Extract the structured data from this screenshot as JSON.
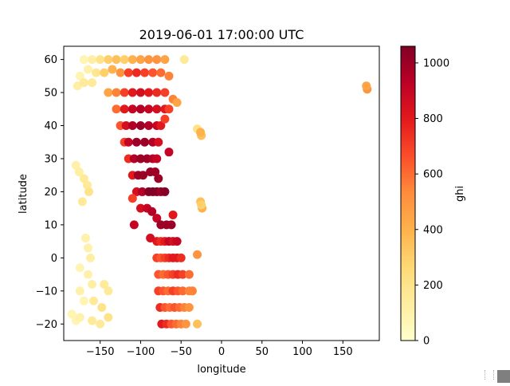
{
  "chart_data": {
    "type": "scatter",
    "title": "2019-06-01 17:00:00 UTC",
    "xlabel": "longitude",
    "ylabel": "latitude",
    "xlim": [
      -195,
      195
    ],
    "ylim": [
      -25,
      64
    ],
    "xticks": [
      -150,
      -100,
      -50,
      0,
      50,
      100,
      150
    ],
    "xtick_labels": [
      "−150",
      "−100",
      "−50",
      "0",
      "50",
      "100",
      "150"
    ],
    "yticks": [
      -20,
      -10,
      0,
      10,
      20,
      30,
      40,
      50,
      60
    ],
    "ytick_labels": [
      "−20",
      "−10",
      "0",
      "10",
      "20",
      "30",
      "40",
      "50",
      "60"
    ],
    "colorbar": {
      "label": "ghi",
      "range": [
        0,
        1060
      ],
      "ticks": [
        0,
        200,
        400,
        600,
        800,
        1000
      ],
      "tick_labels": [
        "0",
        "200",
        "400",
        "600",
        "800",
        "1000"
      ],
      "colormap": "YlOrRd"
    },
    "points": [
      {
        "x": -170,
        "y": 60,
        "v": 80
      },
      {
        "x": -160,
        "y": 60,
        "v": 120
      },
      {
        "x": -150,
        "y": 60,
        "v": 200
      },
      {
        "x": -140,
        "y": 60,
        "v": 300
      },
      {
        "x": -130,
        "y": 60,
        "v": 350
      },
      {
        "x": -120,
        "y": 60,
        "v": 300
      },
      {
        "x": -110,
        "y": 60,
        "v": 400
      },
      {
        "x": -100,
        "y": 60,
        "v": 450
      },
      {
        "x": -90,
        "y": 60,
        "v": 500
      },
      {
        "x": -80,
        "y": 60,
        "v": 500
      },
      {
        "x": -70,
        "y": 60,
        "v": 450
      },
      {
        "x": -46,
        "y": 60,
        "v": 150
      },
      {
        "x": -175,
        "y": 55,
        "v": 80
      },
      {
        "x": -165,
        "y": 57,
        "v": 100
      },
      {
        "x": -155,
        "y": 56,
        "v": 180
      },
      {
        "x": -145,
        "y": 56,
        "v": 300
      },
      {
        "x": -135,
        "y": 57,
        "v": 400
      },
      {
        "x": -125,
        "y": 56,
        "v": 500
      },
      {
        "x": -115,
        "y": 56,
        "v": 700
      },
      {
        "x": -105,
        "y": 56,
        "v": 750
      },
      {
        "x": -95,
        "y": 56,
        "v": 700
      },
      {
        "x": -85,
        "y": 56,
        "v": 650
      },
      {
        "x": -75,
        "y": 56,
        "v": 600
      },
      {
        "x": -65,
        "y": 55,
        "v": 550
      },
      {
        "x": -178,
        "y": 52,
        "v": 120
      },
      {
        "x": -170,
        "y": 53,
        "v": 150
      },
      {
        "x": -160,
        "y": 53,
        "v": 150
      },
      {
        "x": -140,
        "y": 50,
        "v": 450
      },
      {
        "x": -130,
        "y": 50,
        "v": 550
      },
      {
        "x": -120,
        "y": 50,
        "v": 700
      },
      {
        "x": -110,
        "y": 50,
        "v": 800
      },
      {
        "x": -100,
        "y": 50,
        "v": 850
      },
      {
        "x": -90,
        "y": 50,
        "v": 800
      },
      {
        "x": -80,
        "y": 50,
        "v": 750
      },
      {
        "x": -70,
        "y": 50,
        "v": 700
      },
      {
        "x": -60,
        "y": 48,
        "v": 550
      },
      {
        "x": -55,
        "y": 47,
        "v": 450
      },
      {
        "x": -130,
        "y": 45,
        "v": 600
      },
      {
        "x": -120,
        "y": 45,
        "v": 800
      },
      {
        "x": -110,
        "y": 45,
        "v": 900
      },
      {
        "x": -100,
        "y": 45,
        "v": 950
      },
      {
        "x": -90,
        "y": 45,
        "v": 900
      },
      {
        "x": -80,
        "y": 45,
        "v": 850
      },
      {
        "x": -70,
        "y": 45,
        "v": 800
      },
      {
        "x": -65,
        "y": 45,
        "v": 700
      },
      {
        "x": -125,
        "y": 40,
        "v": 650
      },
      {
        "x": -118,
        "y": 40,
        "v": 850
      },
      {
        "x": -110,
        "y": 40,
        "v": 950
      },
      {
        "x": -100,
        "y": 40,
        "v": 1000
      },
      {
        "x": -90,
        "y": 40,
        "v": 950
      },
      {
        "x": -80,
        "y": 40,
        "v": 900
      },
      {
        "x": -75,
        "y": 40,
        "v": 800
      },
      {
        "x": -70,
        "y": 42,
        "v": 700
      },
      {
        "x": -120,
        "y": 35,
        "v": 700
      },
      {
        "x": -115,
        "y": 35,
        "v": 900
      },
      {
        "x": -105,
        "y": 35,
        "v": 1000
      },
      {
        "x": -95,
        "y": 35,
        "v": 1000
      },
      {
        "x": -85,
        "y": 35,
        "v": 950
      },
      {
        "x": -78,
        "y": 35,
        "v": 850
      },
      {
        "x": -115,
        "y": 30,
        "v": 750
      },
      {
        "x": -108,
        "y": 30,
        "v": 950
      },
      {
        "x": -100,
        "y": 30,
        "v": 1000
      },
      {
        "x": -92,
        "y": 30,
        "v": 1000
      },
      {
        "x": -85,
        "y": 30,
        "v": 950
      },
      {
        "x": -80,
        "y": 30,
        "v": 900
      },
      {
        "x": -110,
        "y": 25,
        "v": 800
      },
      {
        "x": -103,
        "y": 25,
        "v": 1000
      },
      {
        "x": -97,
        "y": 25,
        "v": 1000
      },
      {
        "x": -88,
        "y": 26,
        "v": 1000
      },
      {
        "x": -82,
        "y": 26,
        "v": 1000
      },
      {
        "x": -78,
        "y": 24,
        "v": 1000
      },
      {
        "x": -105,
        "y": 20,
        "v": 850
      },
      {
        "x": -98,
        "y": 20,
        "v": 950
      },
      {
        "x": -90,
        "y": 20,
        "v": 1050
      },
      {
        "x": -85,
        "y": 20,
        "v": 1050
      },
      {
        "x": -80,
        "y": 20,
        "v": 1050
      },
      {
        "x": -75,
        "y": 20,
        "v": 1000
      },
      {
        "x": -70,
        "y": 20,
        "v": 1050
      },
      {
        "x": -100,
        "y": 15,
        "v": 850
      },
      {
        "x": -92,
        "y": 15,
        "v": 900
      },
      {
        "x": -86,
        "y": 14,
        "v": 950
      },
      {
        "x": -80,
        "y": 12,
        "v": 900
      },
      {
        "x": -75,
        "y": 10,
        "v": 1000
      },
      {
        "x": -68,
        "y": 10,
        "v": 1000
      },
      {
        "x": -62,
        "y": 10,
        "v": 1000
      },
      {
        "x": -80,
        "y": 5,
        "v": 800
      },
      {
        "x": -75,
        "y": 5,
        "v": 750
      },
      {
        "x": -70,
        "y": 5,
        "v": 800
      },
      {
        "x": -65,
        "y": 5,
        "v": 900
      },
      {
        "x": -60,
        "y": 5,
        "v": 850
      },
      {
        "x": -55,
        "y": 5,
        "v": 900
      },
      {
        "x": -80,
        "y": 0,
        "v": 700
      },
      {
        "x": -75,
        "y": 0,
        "v": 650
      },
      {
        "x": -70,
        "y": 0,
        "v": 700
      },
      {
        "x": -65,
        "y": 0,
        "v": 750
      },
      {
        "x": -60,
        "y": 0,
        "v": 800
      },
      {
        "x": -55,
        "y": 0,
        "v": 800
      },
      {
        "x": -50,
        "y": 0,
        "v": 750
      },
      {
        "x": -78,
        "y": -5,
        "v": 650
      },
      {
        "x": -72,
        "y": -5,
        "v": 600
      },
      {
        "x": -66,
        "y": -5,
        "v": 650
      },
      {
        "x": -60,
        "y": -5,
        "v": 700
      },
      {
        "x": -54,
        "y": -5,
        "v": 750
      },
      {
        "x": -48,
        "y": -5,
        "v": 700
      },
      {
        "x": -40,
        "y": -5,
        "v": 600
      },
      {
        "x": -78,
        "y": -10,
        "v": 700
      },
      {
        "x": -72,
        "y": -10,
        "v": 650
      },
      {
        "x": -66,
        "y": -10,
        "v": 600
      },
      {
        "x": -60,
        "y": -10,
        "v": 700
      },
      {
        "x": -54,
        "y": -10,
        "v": 650
      },
      {
        "x": -48,
        "y": -10,
        "v": 600
      },
      {
        "x": -40,
        "y": -10,
        "v": 550
      },
      {
        "x": -36,
        "y": -10,
        "v": 550
      },
      {
        "x": -76,
        "y": -15,
        "v": 750
      },
      {
        "x": -70,
        "y": -15,
        "v": 650
      },
      {
        "x": -64,
        "y": -15,
        "v": 600
      },
      {
        "x": -58,
        "y": -15,
        "v": 650
      },
      {
        "x": -52,
        "y": -15,
        "v": 600
      },
      {
        "x": -46,
        "y": -15,
        "v": 550
      },
      {
        "x": -40,
        "y": -15,
        "v": 500
      },
      {
        "x": -74,
        "y": -20,
        "v": 800
      },
      {
        "x": -68,
        "y": -20,
        "v": 750
      },
      {
        "x": -62,
        "y": -20,
        "v": 650
      },
      {
        "x": -56,
        "y": -20,
        "v": 600
      },
      {
        "x": -50,
        "y": -20,
        "v": 550
      },
      {
        "x": -44,
        "y": -20,
        "v": 500
      },
      {
        "x": -30,
        "y": -20,
        "v": 350
      },
      {
        "x": -180,
        "y": 28,
        "v": 100
      },
      {
        "x": -176,
        "y": 26,
        "v": 120
      },
      {
        "x": -170,
        "y": 24,
        "v": 150
      },
      {
        "x": -166,
        "y": 22,
        "v": 150
      },
      {
        "x": -164,
        "y": 20,
        "v": 200
      },
      {
        "x": -172,
        "y": 17,
        "v": 150
      },
      {
        "x": -168,
        "y": 6,
        "v": 100
      },
      {
        "x": -165,
        "y": 3,
        "v": 100
      },
      {
        "x": -162,
        "y": 0,
        "v": 120
      },
      {
        "x": -175,
        "y": -3,
        "v": 80
      },
      {
        "x": -165,
        "y": -5,
        "v": 100
      },
      {
        "x": -160,
        "y": -8,
        "v": 120
      },
      {
        "x": -145,
        "y": -8,
        "v": 150
      },
      {
        "x": -140,
        "y": -10,
        "v": 150
      },
      {
        "x": -175,
        "y": -10,
        "v": 100
      },
      {
        "x": -170,
        "y": -13,
        "v": 80
      },
      {
        "x": -158,
        "y": -13,
        "v": 150
      },
      {
        "x": -148,
        "y": -15,
        "v": 200
      },
      {
        "x": -185,
        "y": -17,
        "v": 80
      },
      {
        "x": -180,
        "y": -19,
        "v": 80
      },
      {
        "x": -175,
        "y": -18,
        "v": 100
      },
      {
        "x": -160,
        "y": -19,
        "v": 150
      },
      {
        "x": -140,
        "y": -18,
        "v": 200
      },
      {
        "x": -150,
        "y": -20,
        "v": 150
      },
      {
        "x": -30,
        "y": 39,
        "v": 200
      },
      {
        "x": -25,
        "y": 37,
        "v": 350
      },
      {
        "x": -26,
        "y": 38,
        "v": 400
      },
      {
        "x": -26,
        "y": 17,
        "v": 350
      },
      {
        "x": -24,
        "y": 15,
        "v": 400
      },
      {
        "x": -25,
        "y": 16,
        "v": 300
      },
      {
        "x": -65,
        "y": 32,
        "v": 900
      },
      {
        "x": -110,
        "y": 18,
        "v": 700
      },
      {
        "x": -108,
        "y": 10,
        "v": 900
      },
      {
        "x": -88,
        "y": 6,
        "v": 850
      },
      {
        "x": -30,
        "y": 1,
        "v": 500
      },
      {
        "x": -60,
        "y": 13,
        "v": 800
      },
      {
        "x": 180,
        "y": 51,
        "v": 500
      },
      {
        "x": 179,
        "y": 52,
        "v": 450
      }
    ]
  }
}
